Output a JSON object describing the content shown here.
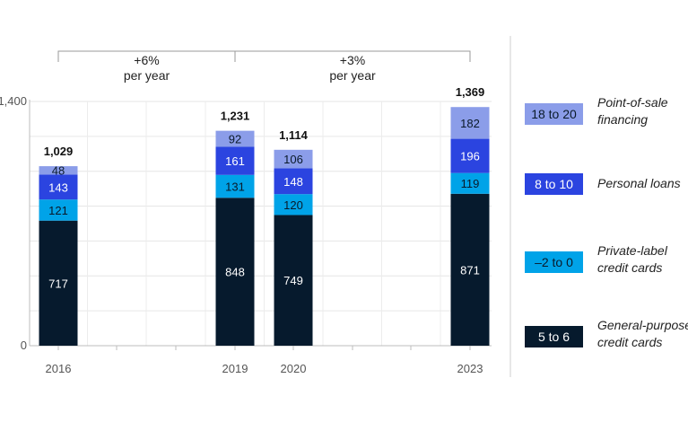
{
  "chart_data": {
    "type": "bar",
    "stacked": true,
    "categories": [
      "2016",
      "2019",
      "2020",
      "2023"
    ],
    "series": [
      {
        "name": "General-purpose credit cards",
        "values": [
          717,
          848,
          749,
          871
        ],
        "color": "#061a2d",
        "text_color": "#ffffff"
      },
      {
        "name": "Private-label credit cards",
        "values": [
          121,
          131,
          120,
          119
        ],
        "color": "#00a3e8",
        "text_color": "#0a1a2a"
      },
      {
        "name": "Personal loans",
        "values": [
          143,
          161,
          148,
          196
        ],
        "color": "#2b44e0",
        "text_color": "#ffffff"
      },
      {
        "name": "Point-of-sale financing",
        "values": [
          48,
          92,
          106,
          182
        ],
        "color": "#8b9de9",
        "text_color": "#0a1a2a"
      }
    ],
    "totals": [
      "1,029",
      "1,231",
      "1,114",
      "1,369"
    ],
    "value_labels": [
      [
        "717",
        "848",
        "749",
        "871"
      ],
      [
        "121",
        "131",
        "120",
        "119"
      ],
      [
        "143",
        "161",
        "148",
        "196"
      ],
      [
        "48",
        "92",
        "106",
        "182"
      ]
    ],
    "yticks": [
      0,
      1400
    ],
    "ytick_labels": [
      "0",
      "1,400"
    ],
    "ylim": [
      0,
      1400
    ],
    "grid": true,
    "growth_annotations": [
      {
        "from": "2016",
        "to": "2019",
        "label_line1": "+6%",
        "label_line2": "per year"
      },
      {
        "from": "2019",
        "to": "2023",
        "label_line1": "+3%",
        "label_line2": "per year"
      }
    ],
    "legend": {
      "position": "right",
      "items": [
        {
          "value": "18 to 20",
          "label": "Point-of-sale\nfinancing",
          "color": "#8b9de9",
          "text_color": "#0a1a2a"
        },
        {
          "value": "8 to 10",
          "label": "Personal loans",
          "color": "#2b44e0",
          "text_color": "#ffffff"
        },
        {
          "value": "–2 to 0",
          "label": "Private-label\ncredit cards",
          "color": "#00a3e8",
          "text_color": "#0a1a2a"
        },
        {
          "value": "5 to 6",
          "label": "General-purpose\ncredit cards",
          "color": "#061a2d",
          "text_color": "#ffffff"
        }
      ]
    }
  }
}
